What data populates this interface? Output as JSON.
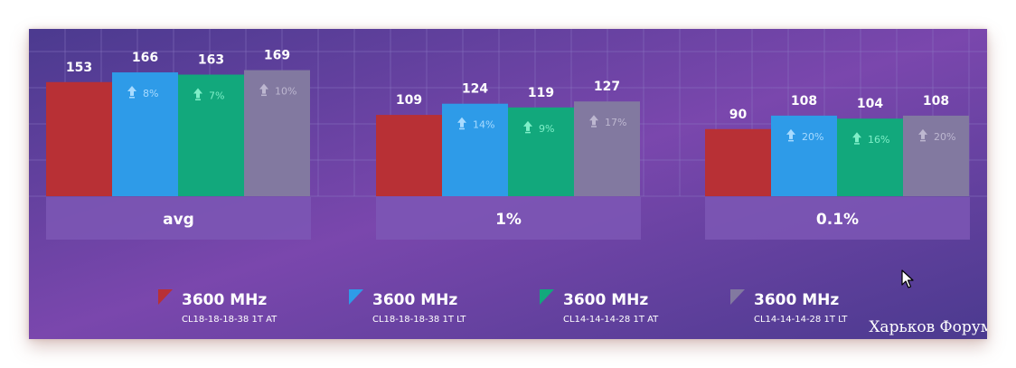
{
  "colors": {
    "background_dark": "#4b3a8f",
    "background_light": "#7a47ad",
    "category_band": "#7d57b5",
    "grid": "#8d7cc6",
    "series": [
      "#b83035",
      "#2e9be8",
      "#12a87c",
      "#8279a0"
    ],
    "pct_text": [
      "#ffffff",
      "#a8dbff",
      "#7fefc8",
      "#bdb7d0"
    ]
  },
  "chart_data": {
    "type": "bar",
    "categories": [
      "avg",
      "1%",
      "0.1%"
    ],
    "series": [
      {
        "name": "3600 MHz",
        "timings": "CL18-18-18-38 1T AT",
        "values": [
          153,
          109,
          90
        ],
        "labels": [
          "153",
          "109",
          "90"
        ],
        "gains": [
          "",
          "",
          ""
        ]
      },
      {
        "name": "3600 MHz",
        "timings": "CL18-18-18-38 1T LT",
        "values": [
          166,
          124,
          108
        ],
        "labels": [
          "166",
          "124",
          "108"
        ],
        "gains": [
          "8%",
          "14%",
          "20%"
        ]
      },
      {
        "name": "3600 MHz",
        "timings": "CL14-14-14-28 1T AT",
        "values": [
          163,
          119,
          104
        ],
        "labels": [
          "163",
          "119",
          "104"
        ],
        "gains": [
          "7%",
          "9%",
          "16%"
        ]
      },
      {
        "name": "3600 MHz",
        "timings": "CL14-14-14-28 1T LT",
        "values": [
          169,
          127,
          108
        ],
        "labels": [
          "169",
          "127",
          "108"
        ],
        "gains": [
          "10%",
          "17%",
          "20%"
        ]
      }
    ],
    "legend_position": "bottom",
    "grid": true
  },
  "watermark": "Харьков Форум"
}
